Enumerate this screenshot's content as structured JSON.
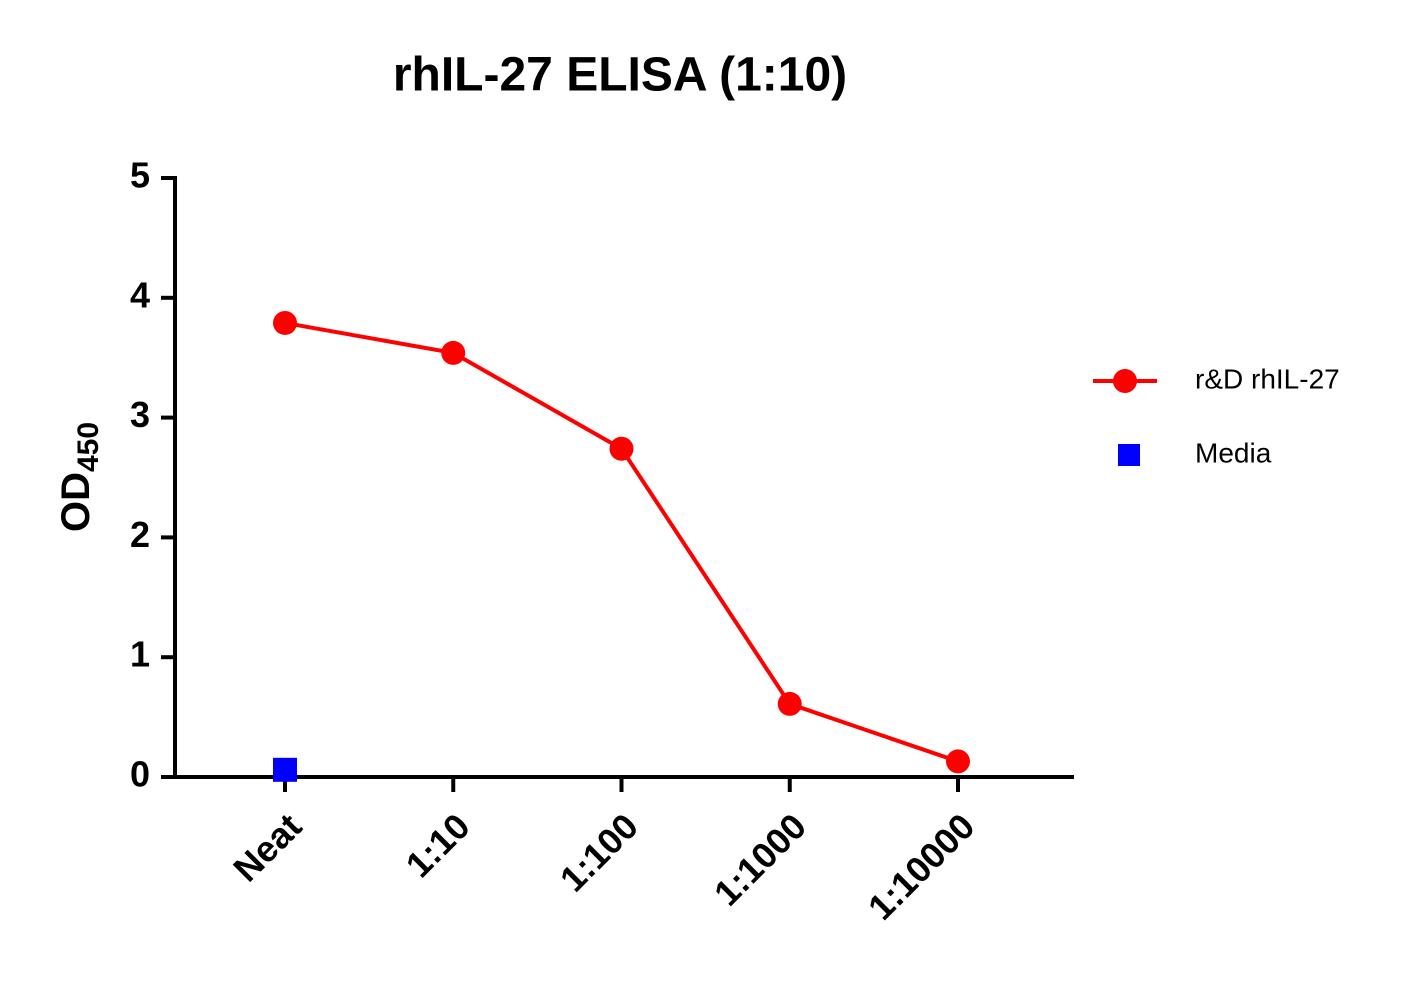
{
  "chart_data": {
    "type": "line",
    "title": "rhIL-27 ELISA (1:10)",
    "y_label": "OD",
    "y_label_subscript": "450",
    "categories": [
      "Neat",
      "1:10",
      "1:100",
      "1:1000",
      "1:10000"
    ],
    "series": [
      {
        "name": "r&D rhIL-27",
        "color": "#ff0000",
        "marker": "circle",
        "line": true,
        "values": [
          3.79,
          3.54,
          2.74,
          0.61,
          0.13
        ]
      },
      {
        "name": "Media",
        "color": "#0000ff",
        "marker": "square",
        "line": false,
        "values": [
          0.06,
          null,
          null,
          null,
          null
        ]
      }
    ],
    "ylim": [
      0,
      5
    ],
    "yticks": [
      0,
      1,
      2,
      3,
      4,
      5
    ],
    "grid": false,
    "legend": "right"
  }
}
